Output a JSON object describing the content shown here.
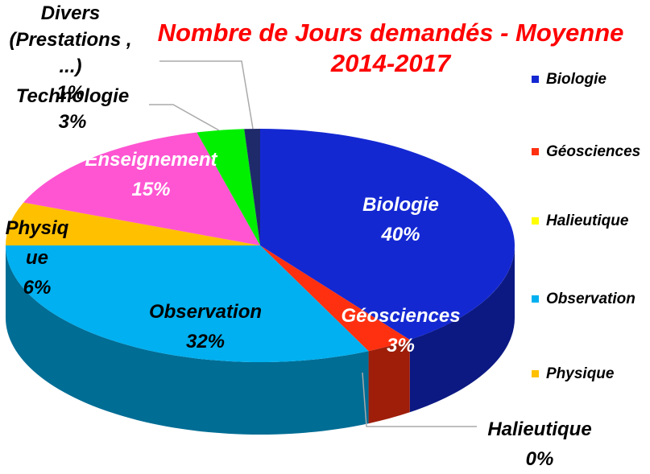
{
  "chart_data": {
    "type": "pie3d",
    "title": "Nombre de Jours demandés - Moyenne 2014-2017",
    "categories": [
      "Biologie",
      "Géosciences",
      "Halieutique",
      "Observation",
      "Physique",
      "Enseignement",
      "Technologie",
      "Divers (Prestations , ...)"
    ],
    "values": [
      40,
      3,
      0,
      32,
      6,
      15,
      3,
      1
    ],
    "value_labels": [
      "40%",
      "3%",
      "0%",
      "32%",
      "6%",
      "15%",
      "3%",
      "1%"
    ],
    "colors": [
      "#1428d2",
      "#ff3010",
      "#ffff00",
      "#00b0f0",
      "#ffc000",
      "#ff55d2",
      "#00f000",
      "#1f2a6b"
    ],
    "legend": "right"
  }
}
